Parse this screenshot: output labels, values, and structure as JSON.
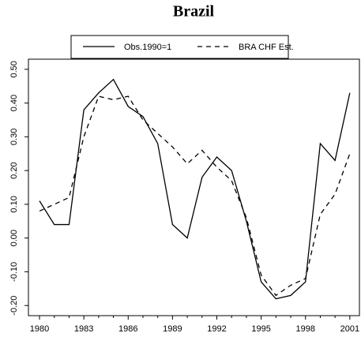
{
  "chart_data": {
    "type": "line",
    "title": "Brazil",
    "x": [
      1980,
      1981,
      1982,
      1983,
      1984,
      1985,
      1986,
      1987,
      1988,
      1989,
      1990,
      1991,
      1992,
      1993,
      1994,
      1995,
      1996,
      1997,
      1998,
      1999,
      2000,
      2001
    ],
    "series": [
      {
        "name": "Obs.1990=1",
        "color": "#000000",
        "dash": "solid",
        "values": [
          0.11,
          0.04,
          0.04,
          0.38,
          0.43,
          0.47,
          0.39,
          0.36,
          0.28,
          0.04,
          0.0,
          0.18,
          0.24,
          0.2,
          0.05,
          -0.13,
          -0.18,
          -0.17,
          -0.13,
          0.28,
          0.23,
          0.43
        ]
      },
      {
        "name": "BRA CHF Est.",
        "color": "#000000",
        "dash": "dashed",
        "values": [
          0.08,
          0.1,
          0.12,
          0.3,
          0.42,
          0.41,
          0.42,
          0.35,
          0.31,
          0.27,
          0.22,
          0.26,
          0.21,
          0.17,
          0.06,
          -0.11,
          -0.17,
          -0.14,
          -0.12,
          0.07,
          0.13,
          0.25
        ]
      }
    ],
    "xlim": [
      1979.25,
      2001.65
    ],
    "xticks": [
      1980,
      1983,
      1986,
      1989,
      1992,
      1995,
      1998,
      2001
    ],
    "ylim": [
      -0.23,
      0.53
    ],
    "yticks": [
      {
        "value": 0.5,
        "label": "0.50"
      },
      {
        "value": 0.4,
        "label": "0.40"
      },
      {
        "value": 0.3,
        "label": "0.30"
      },
      {
        "value": 0.2,
        "label": "0.20"
      },
      {
        "value": 0.1,
        "label": "0.10"
      },
      {
        "value": 0,
        "label": "0.00"
      },
      {
        "value": -0.1,
        "label": "-0.10"
      },
      {
        "value": -0.2,
        "label": "-0.20"
      }
    ]
  }
}
